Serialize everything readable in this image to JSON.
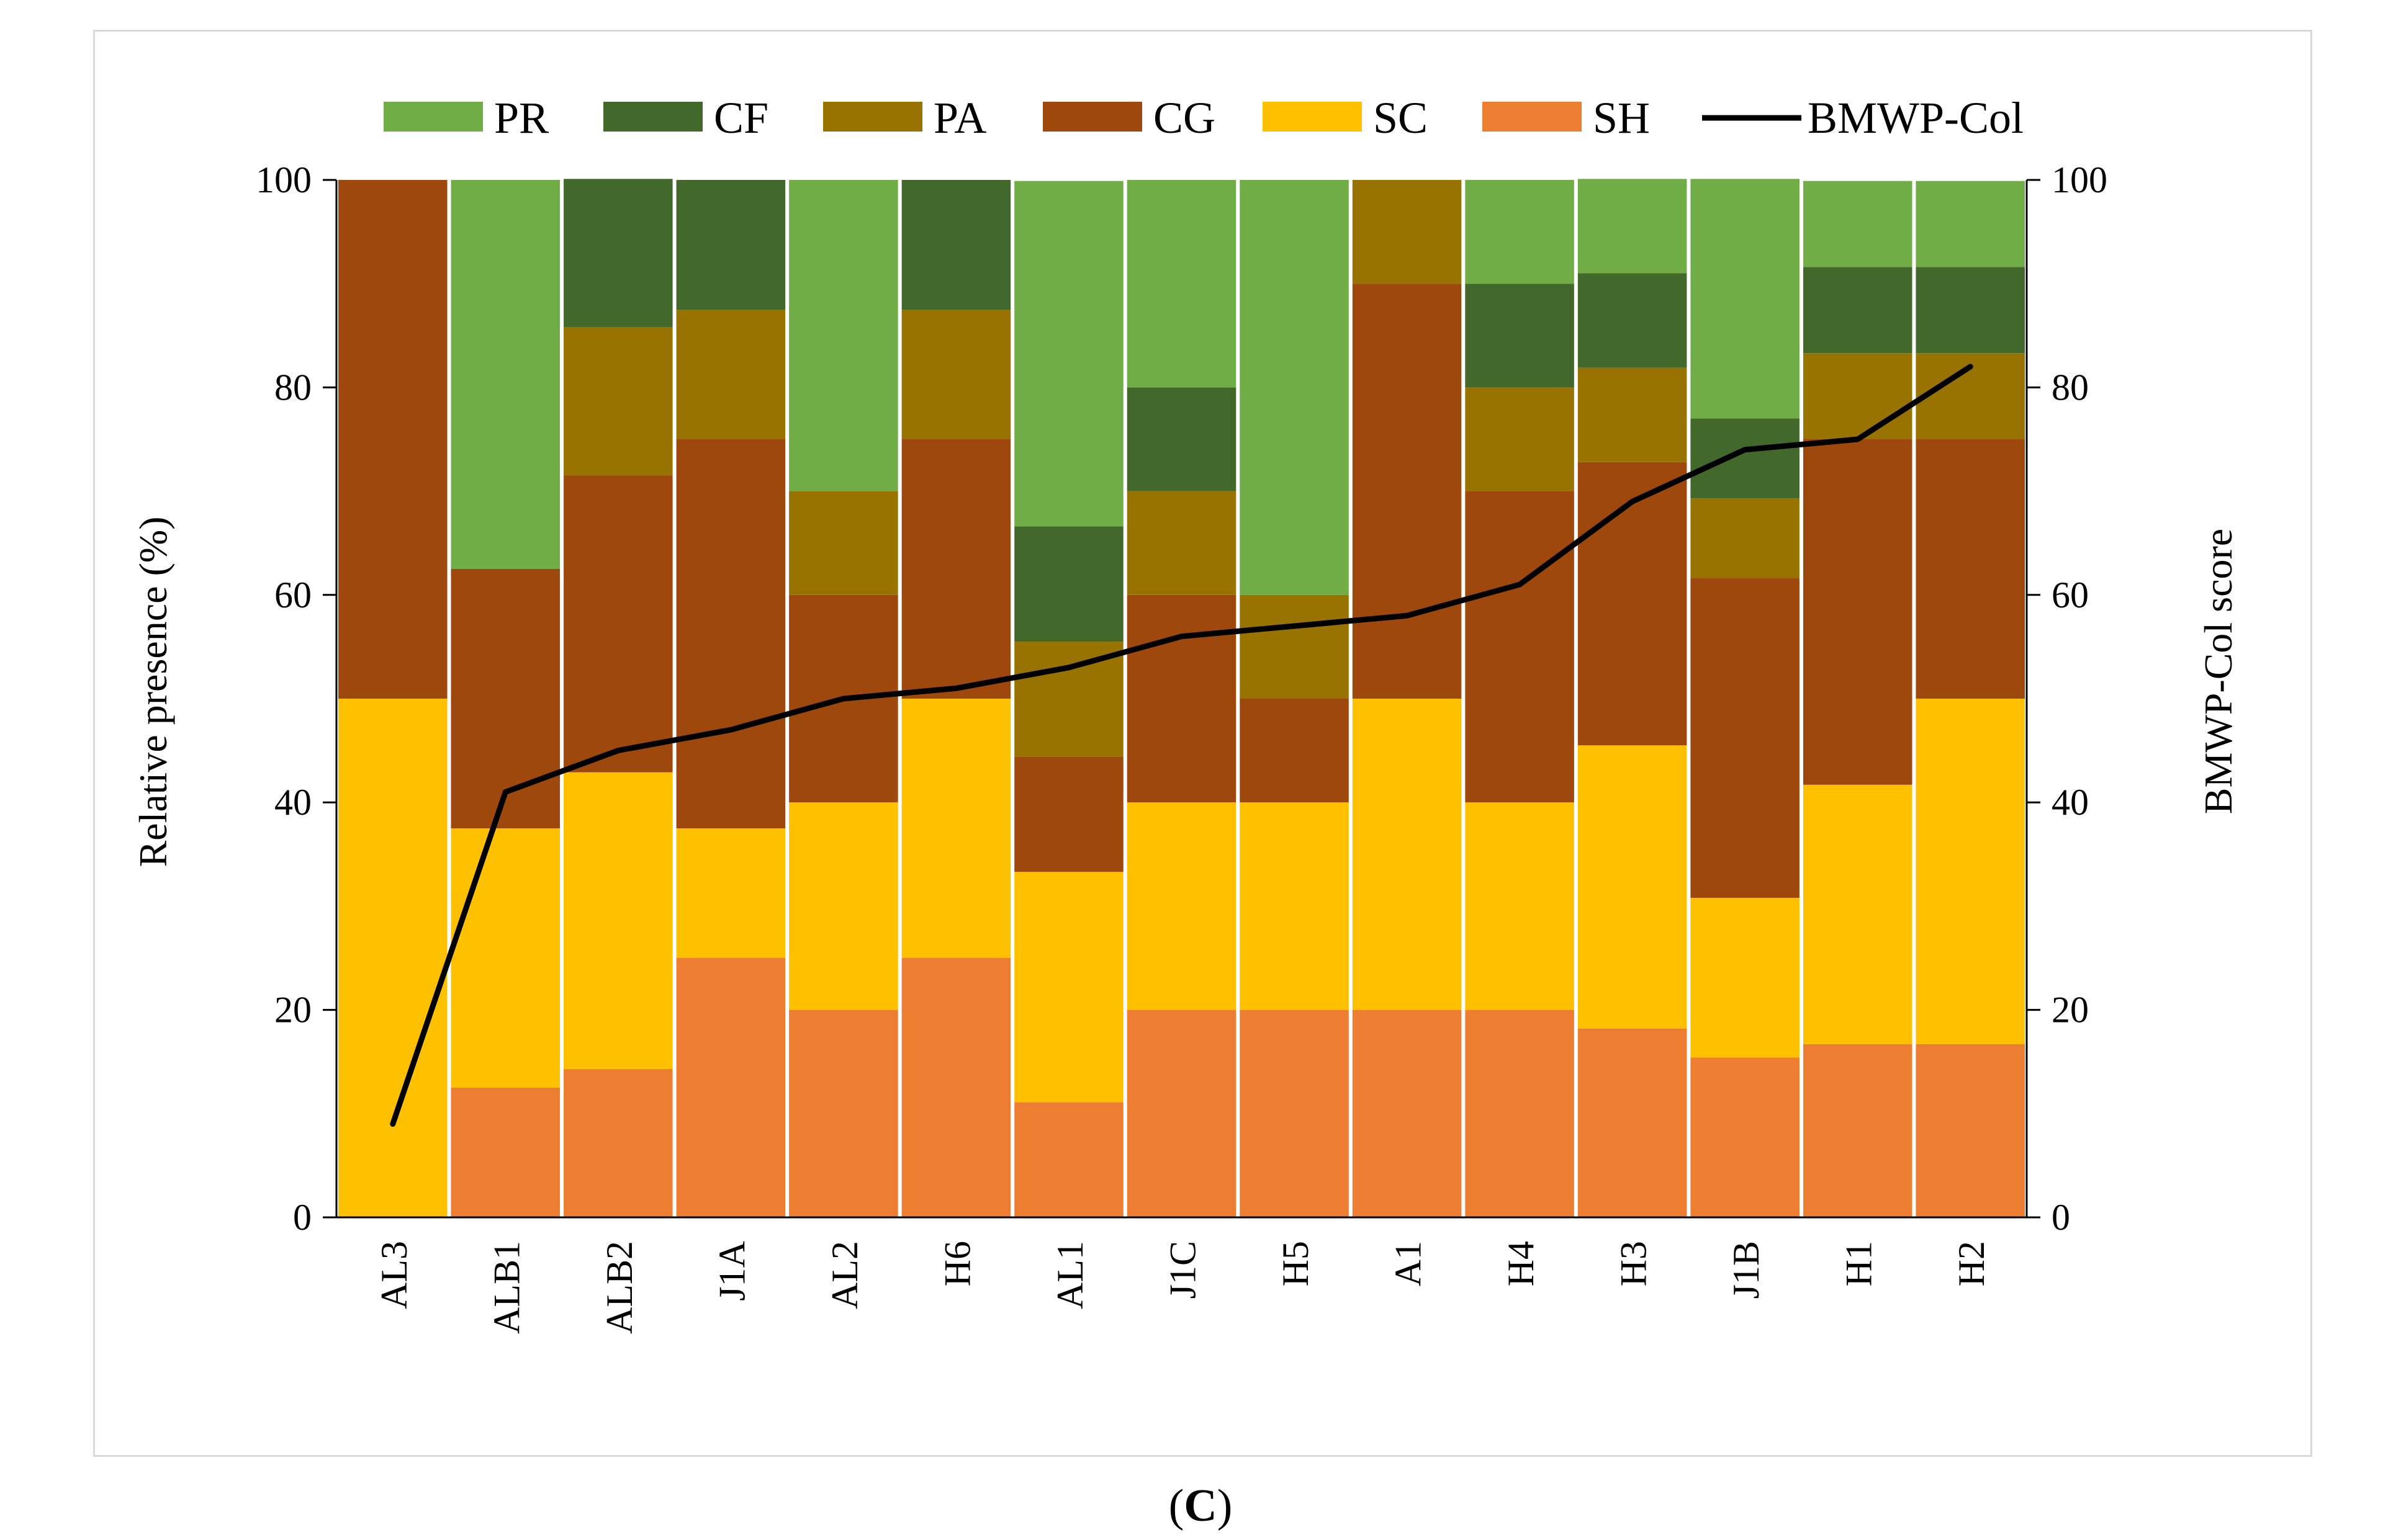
{
  "panel_label": {
    "open": "(",
    "letter": "C",
    "close": ")"
  },
  "chart_data": {
    "type": "bar",
    "stacked": true,
    "categories": [
      "AL3",
      "ALB1",
      "ALB2",
      "J1A",
      "AL2",
      "H6",
      "AL1",
      "J1C",
      "H5",
      "A1",
      "H4",
      "H3",
      "J1B",
      "H1",
      "H2"
    ],
    "series": [
      {
        "name": "SH",
        "color": "#ED7D31",
        "values": [
          0,
          12.5,
          14.3,
          25,
          20,
          25,
          11.1,
          20,
          20,
          20,
          20,
          18.2,
          15.4,
          16.7,
          16.7
        ]
      },
      {
        "name": "SC",
        "color": "#FFC000",
        "values": [
          50,
          25,
          28.6,
          12.5,
          20,
          25,
          22.2,
          20,
          20,
          30,
          20,
          27.3,
          15.4,
          25,
          33.3
        ]
      },
      {
        "name": "CG",
        "color": "#9E480E",
        "values": [
          50,
          25,
          28.6,
          37.5,
          20,
          25,
          11.1,
          20,
          10,
          40,
          30,
          27.3,
          30.8,
          33.3,
          25
        ]
      },
      {
        "name": "PA",
        "color": "#997300",
        "values": [
          0,
          0,
          14.3,
          12.5,
          10,
          12.5,
          11.1,
          10,
          10,
          10,
          10,
          9.1,
          7.7,
          8.3,
          8.3
        ]
      },
      {
        "name": "CF",
        "color": "#43682B",
        "values": [
          0,
          0,
          14.3,
          12.5,
          0,
          12.5,
          11.1,
          10,
          0,
          0,
          10,
          9.1,
          7.7,
          8.3,
          8.3
        ]
      },
      {
        "name": "PR",
        "color": "#70AD47",
        "values": [
          0,
          37.5,
          0,
          0,
          30,
          0,
          33.3,
          20,
          40,
          0,
          10,
          9.1,
          23.1,
          8.3,
          8.3
        ]
      }
    ],
    "line_series": {
      "name": "BMWP-Col",
      "color": "#000000",
      "axis": "right",
      "values": [
        9,
        41,
        45,
        47,
        50,
        51,
        53,
        56,
        57,
        58,
        61,
        69,
        74,
        75,
        82
      ]
    },
    "legend": {
      "position": "top",
      "order": [
        "PR",
        "CF",
        "PA",
        "CG",
        "SC",
        "SH",
        "BMWP-Col"
      ]
    },
    "ylabel": "Relative presence (%)",
    "y2label": "BMWP-Col score",
    "xlabel": "",
    "ylim": [
      0,
      100
    ],
    "y2lim": [
      0,
      100
    ],
    "yticks": [
      0,
      20,
      40,
      60,
      80,
      100
    ],
    "y2ticks": [
      0,
      20,
      40,
      60,
      80,
      100
    ],
    "grid": false
  }
}
